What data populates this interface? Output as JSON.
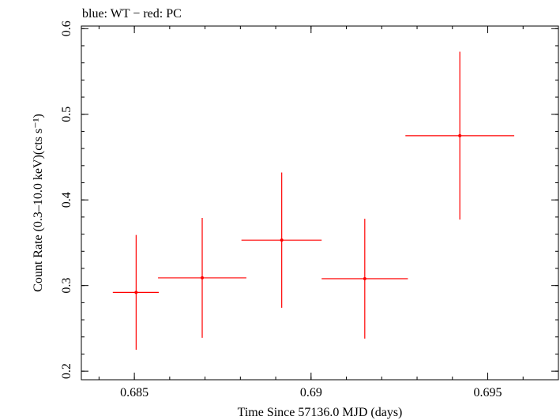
{
  "chart_data": {
    "type": "scatter",
    "title": "blue: WT − red: PC",
    "xlabel": "Time Since 57136.0 MJD (days)",
    "ylabel": "Count Rate (0.3–10.0 keV)(cts s⁻¹)",
    "xlim": [
      0.6835,
      0.697
    ],
    "ylim": [
      0.19,
      0.603
    ],
    "x_ticks": [
      0.685,
      0.69,
      0.695
    ],
    "x_tick_labels": [
      "0.685",
      "0.69",
      "0.695"
    ],
    "y_ticks": [
      0.2,
      0.3,
      0.4,
      0.5,
      0.6
    ],
    "y_tick_labels": [
      "0.2",
      "0.3",
      "0.4",
      "0.5",
      "0.6"
    ],
    "series": [
      {
        "name": "PC",
        "color": "#ff0000",
        "points": [
          {
            "x": 0.68505,
            "y": 0.292,
            "xerr_lo": 0.00066,
            "xerr_hi": 0.00064,
            "yerr_lo": 0.067,
            "yerr_hi": 0.067
          },
          {
            "x": 0.68692,
            "y": 0.309,
            "xerr_lo": 0.00125,
            "xerr_hi": 0.00125,
            "yerr_lo": 0.07,
            "yerr_hi": 0.07
          },
          {
            "x": 0.68917,
            "y": 0.353,
            "xerr_lo": 0.00114,
            "xerr_hi": 0.00113,
            "yerr_lo": 0.079,
            "yerr_hi": 0.079
          },
          {
            "x": 0.69152,
            "y": 0.308,
            "xerr_lo": 0.00122,
            "xerr_hi": 0.00122,
            "yerr_lo": 0.07,
            "yerr_hi": 0.07
          },
          {
            "x": 0.69421,
            "y": 0.475,
            "xerr_lo": 0.00154,
            "xerr_hi": 0.00154,
            "yerr_lo": 0.098,
            "yerr_hi": 0.098
          }
        ]
      }
    ]
  }
}
